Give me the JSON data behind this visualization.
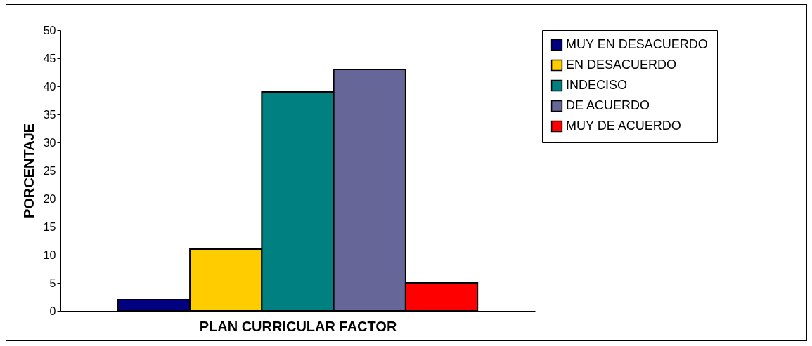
{
  "chart_data": {
    "type": "bar",
    "xlabel": "PLAN CURRICULAR FACTOR",
    "ylabel": "PORCENTAJE",
    "categories": [
      null
    ],
    "series": [
      {
        "name": "MUY EN DESACUERDO",
        "color": "#000080",
        "values": [
          2
        ]
      },
      {
        "name": "EN DESACUERDO",
        "color": "#ffcc00",
        "values": [
          11
        ]
      },
      {
        "name": "INDECISO",
        "color": "#008080",
        "values": [
          39
        ]
      },
      {
        "name": "DE ACUERDO",
        "color": "#666699",
        "values": [
          43
        ]
      },
      {
        "name": "MUY DE ACUERDO",
        "color": "#ff0000",
        "values": [
          5
        ]
      }
    ],
    "ylim": [
      0,
      50
    ],
    "yticks": [
      0,
      5,
      10,
      15,
      20,
      25,
      30,
      35,
      40,
      45,
      50
    ],
    "grid": false,
    "legend": "right",
    "tick_labels": "y"
  }
}
